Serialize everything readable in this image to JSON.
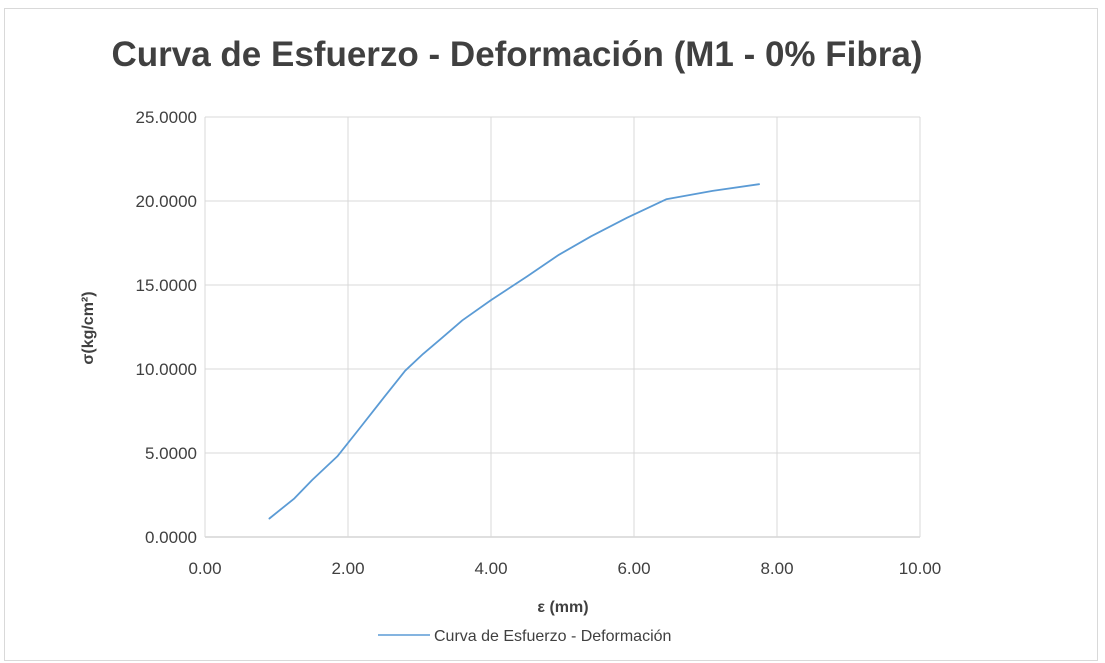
{
  "chart_data": {
    "type": "line",
    "title": "Curva de Esfuerzo - Deformación (M1 - 0% Fibra)",
    "xlabel": "ε (mm)",
    "ylabel": "σ(kg/cm²)",
    "xlim": [
      0,
      10
    ],
    "ylim": [
      0,
      25
    ],
    "x_ticks": [
      "0.00",
      "2.00",
      "4.00",
      "6.00",
      "8.00",
      "10.00"
    ],
    "y_ticks": [
      "0.0000",
      "5.0000",
      "10.0000",
      "15.0000",
      "20.0000",
      "25.0000"
    ],
    "grid": true,
    "legend_position": "bottom",
    "series": [
      {
        "name": "Curva de Esfuerzo - Deformación",
        "color": "#5b9bd5",
        "x": [
          0.9,
          1.25,
          1.5,
          1.85,
          2.15,
          2.5,
          2.8,
          3.05,
          3.3,
          3.6,
          4.0,
          4.5,
          4.95,
          5.4,
          5.9,
          6.45,
          7.1,
          7.75
        ],
        "y": [
          1.1,
          2.3,
          3.4,
          4.8,
          6.4,
          8.3,
          9.9,
          10.9,
          11.8,
          12.9,
          14.1,
          15.5,
          16.8,
          17.9,
          19.0,
          20.1,
          20.6,
          21.0
        ]
      }
    ]
  }
}
